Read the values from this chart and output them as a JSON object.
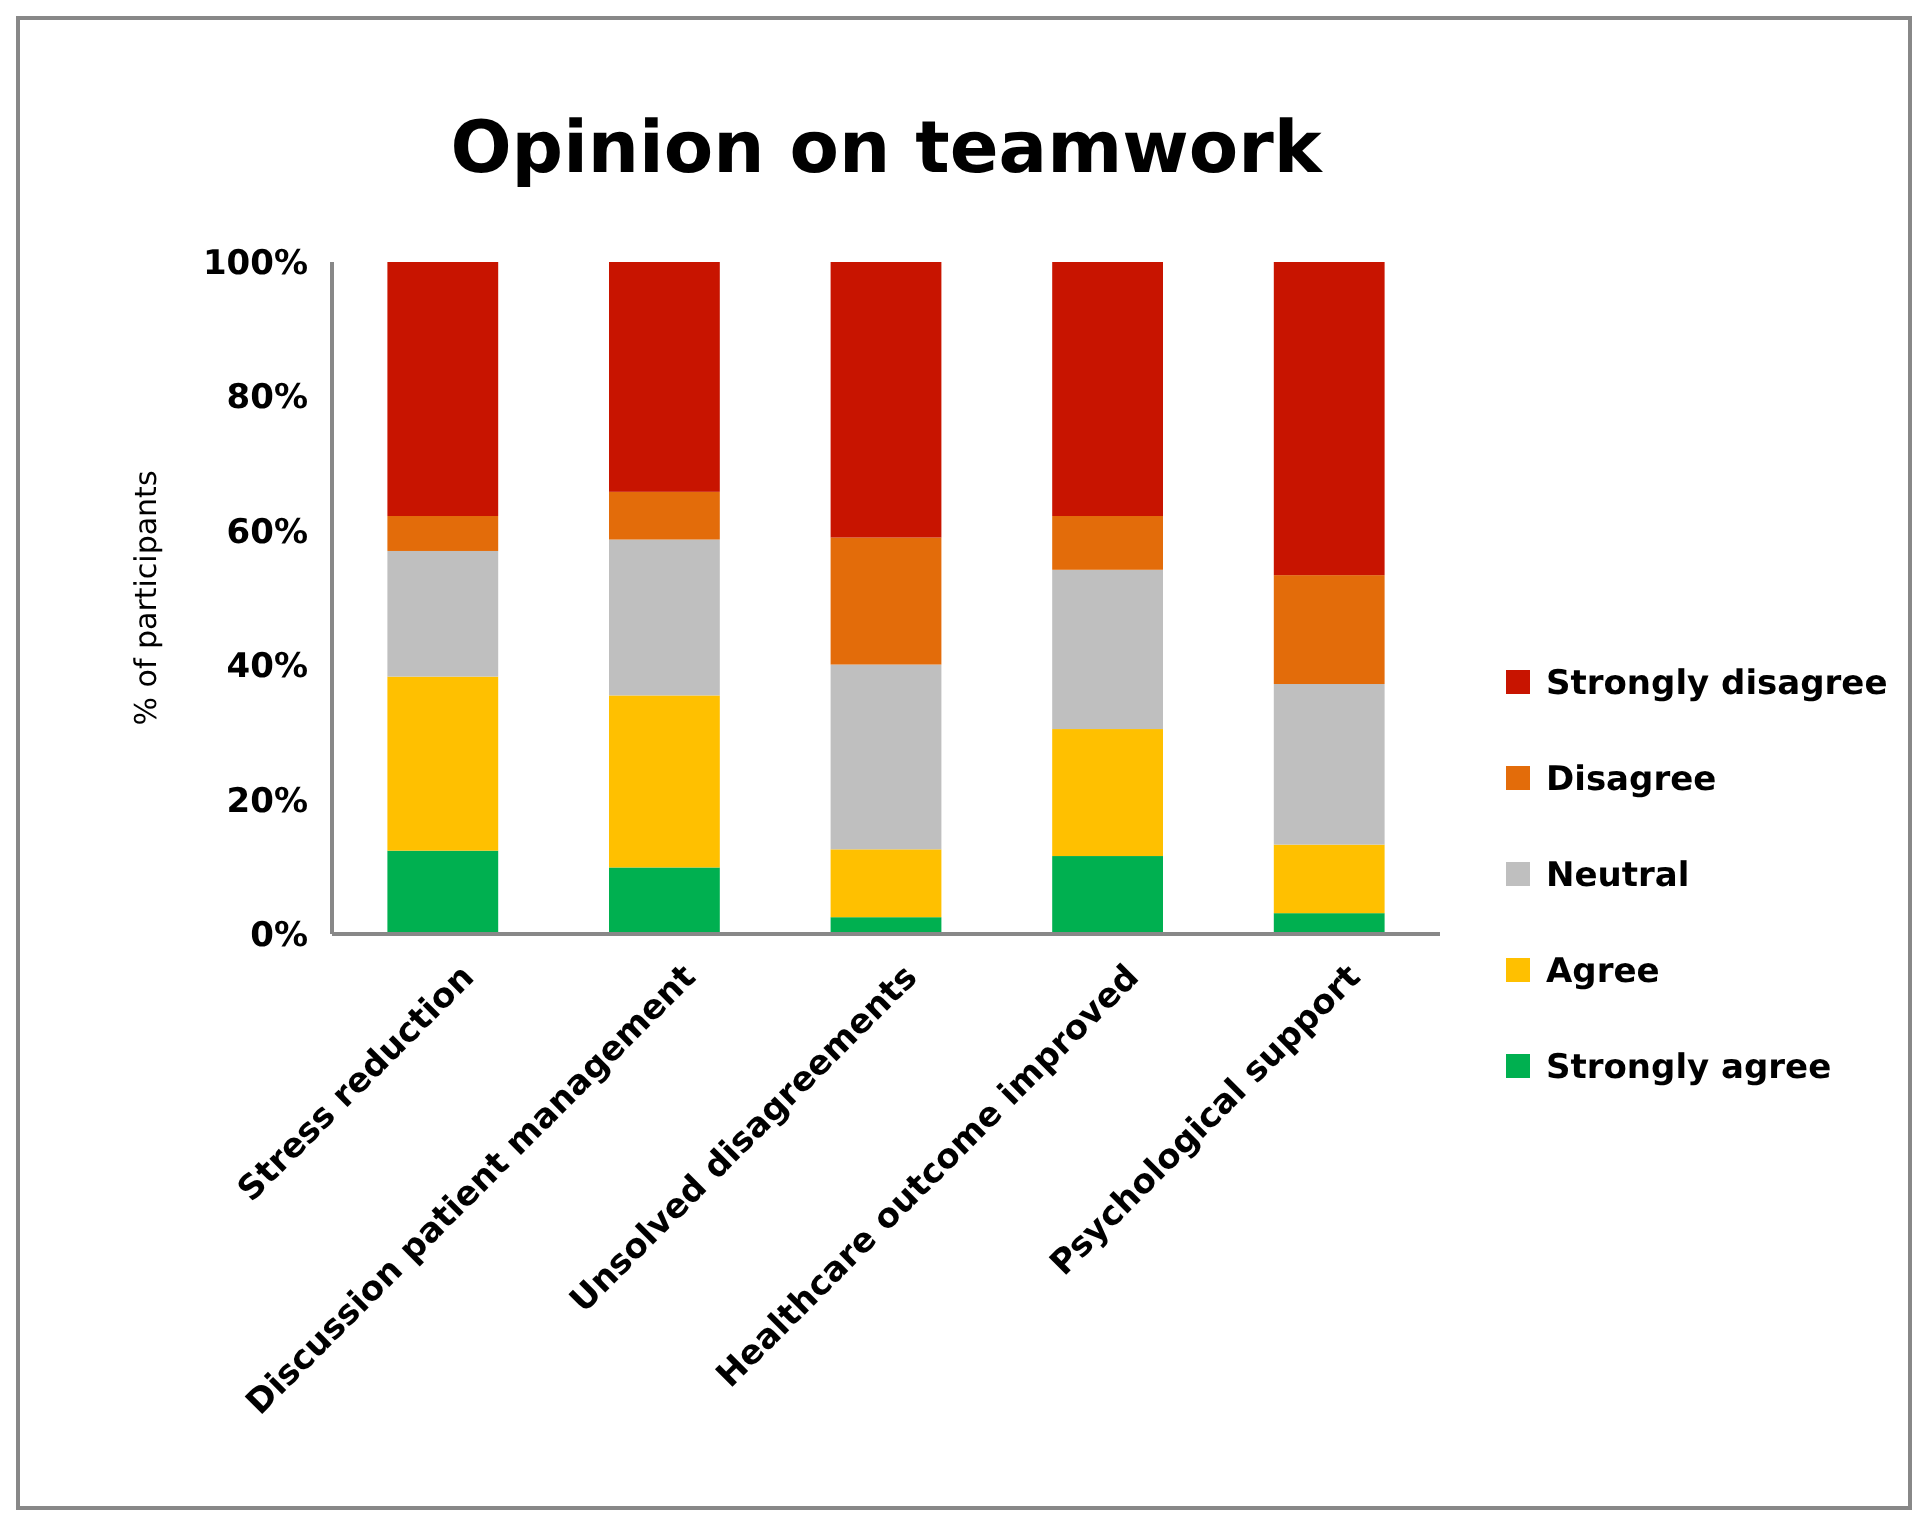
{
  "chart_data": {
    "type": "bar",
    "title": "Opinion on teamwork",
    "ylabel": "% of participants",
    "stacked": true,
    "legend": "right",
    "grid": false,
    "categories": [
      "Stress reduction",
      "Discussion patient management",
      "Unsolved disagreements",
      "Healthcare outcome improved",
      "Psychological support"
    ],
    "ylim": [
      0,
      100
    ],
    "yticks": [
      {
        "value": 0,
        "label": "0%"
      },
      {
        "value": 20,
        "label": "20%"
      },
      {
        "value": 40,
        "label": "40%"
      },
      {
        "value": 60,
        "label": "60%"
      },
      {
        "value": 80,
        "label": "80%"
      },
      {
        "value": 100,
        "label": "100%"
      }
    ],
    "series": [
      {
        "name": "Strongly agree",
        "color": "#00b050",
        "values": [
          12.4,
          9.9,
          2.5,
          11.6,
          3.1
        ]
      },
      {
        "name": "Agree",
        "color": "#ffc000",
        "values": [
          25.9,
          25.6,
          10.1,
          18.9,
          10.2
        ]
      },
      {
        "name": "Neutral",
        "color": "#bfbfbf",
        "values": [
          18.7,
          23.2,
          27.5,
          23.7,
          23.9
        ]
      },
      {
        "name": "Disagree",
        "color": "#e36c0a",
        "values": [
          5.2,
          7.1,
          18.9,
          8.0,
          16.2
        ]
      },
      {
        "name": "Strongly disagree",
        "color": "#c81400",
        "values": [
          37.8,
          34.2,
          41.0,
          37.8,
          46.6
        ]
      }
    ]
  }
}
